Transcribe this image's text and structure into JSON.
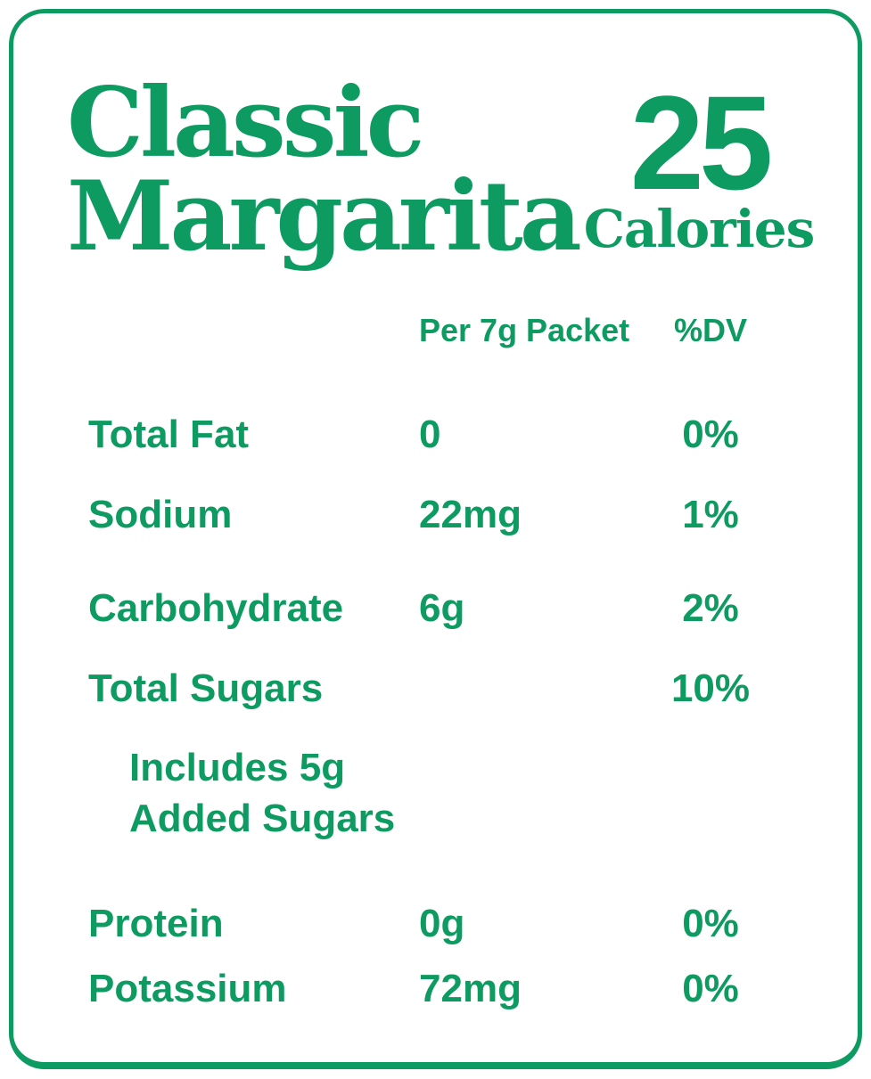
{
  "accent_color": "#0e9b62",
  "header": {
    "title_line1": "Classic",
    "title_line2": "Margarita",
    "calories_value": "25",
    "calories_unit": "Calories"
  },
  "table": {
    "columns": {
      "amount": "Per 7g Packet",
      "dv": "%DV"
    },
    "rows": [
      {
        "name": "Total Fat",
        "amount": "0",
        "dv": "0%"
      },
      {
        "name": "Sodium",
        "amount": "22mg",
        "dv": "1%"
      },
      {
        "name": "Carbohydrate",
        "amount": "6g",
        "dv": "2%"
      },
      {
        "name": "Total Sugars",
        "amount": "",
        "dv": "10%"
      },
      {
        "name_line1": "Includes 5g",
        "name_line2": "Added Sugars",
        "amount": "",
        "dv": ""
      },
      {
        "name": "Protein",
        "amount": "0g",
        "dv": "0%"
      },
      {
        "name": "Potassium",
        "amount": "72mg",
        "dv": "0%"
      }
    ]
  }
}
